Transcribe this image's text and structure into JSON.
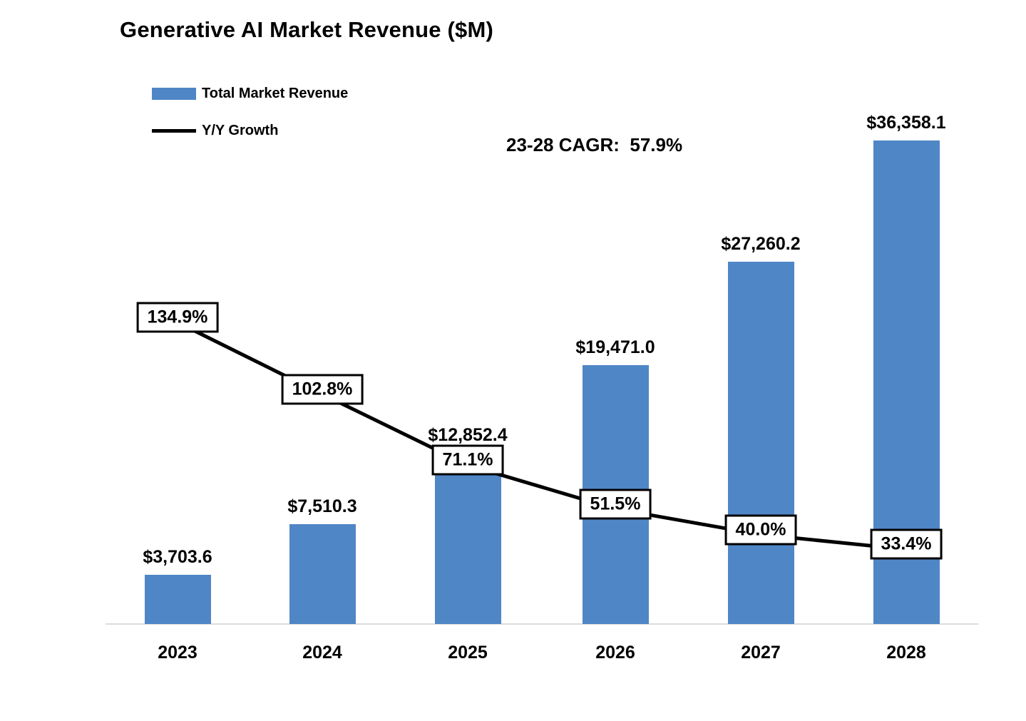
{
  "title": "Generative AI Market Revenue ($M)",
  "legend": {
    "items": [
      {
        "label": "Total Market Revenue",
        "type": "bar",
        "color": "#4f86c6"
      },
      {
        "label": "Y/Y Growth",
        "type": "line",
        "color": "#000000"
      }
    ]
  },
  "annotation": {
    "text": "23-28 CAGR:  57.9%"
  },
  "chart_data": {
    "type": "bar",
    "title": "Generative AI Market Revenue ($M)",
    "categories": [
      "2023",
      "2024",
      "2025",
      "2026",
      "2027",
      "2028"
    ],
    "series": [
      {
        "name": "Total Market Revenue",
        "type": "bar",
        "color": "#4f86c6",
        "values": [
          3703.6,
          7510.3,
          12852.4,
          19471.0,
          27260.2,
          36358.1
        ],
        "labels": [
          "$3,703.6",
          "$7,510.3",
          "$12,852.4",
          "$19,471.0",
          "$27,260.2",
          "$36,358.1"
        ]
      },
      {
        "name": "Y/Y Growth",
        "type": "line",
        "color": "#000000",
        "values": [
          134.9,
          102.8,
          71.1,
          51.5,
          40.0,
          33.4
        ],
        "labels": [
          "134.9%",
          "102.8%",
          "71.1%",
          "51.5%",
          "40.0%",
          "33.4%"
        ]
      }
    ],
    "ylabel": "",
    "xlabel": "",
    "ylim": [
      0,
      36358.1
    ],
    "y2lim": [
      0,
      216
    ],
    "grid": false,
    "legend_position": "top-left",
    "extra_annotations": [
      "23-28 CAGR:  57.9%"
    ]
  }
}
